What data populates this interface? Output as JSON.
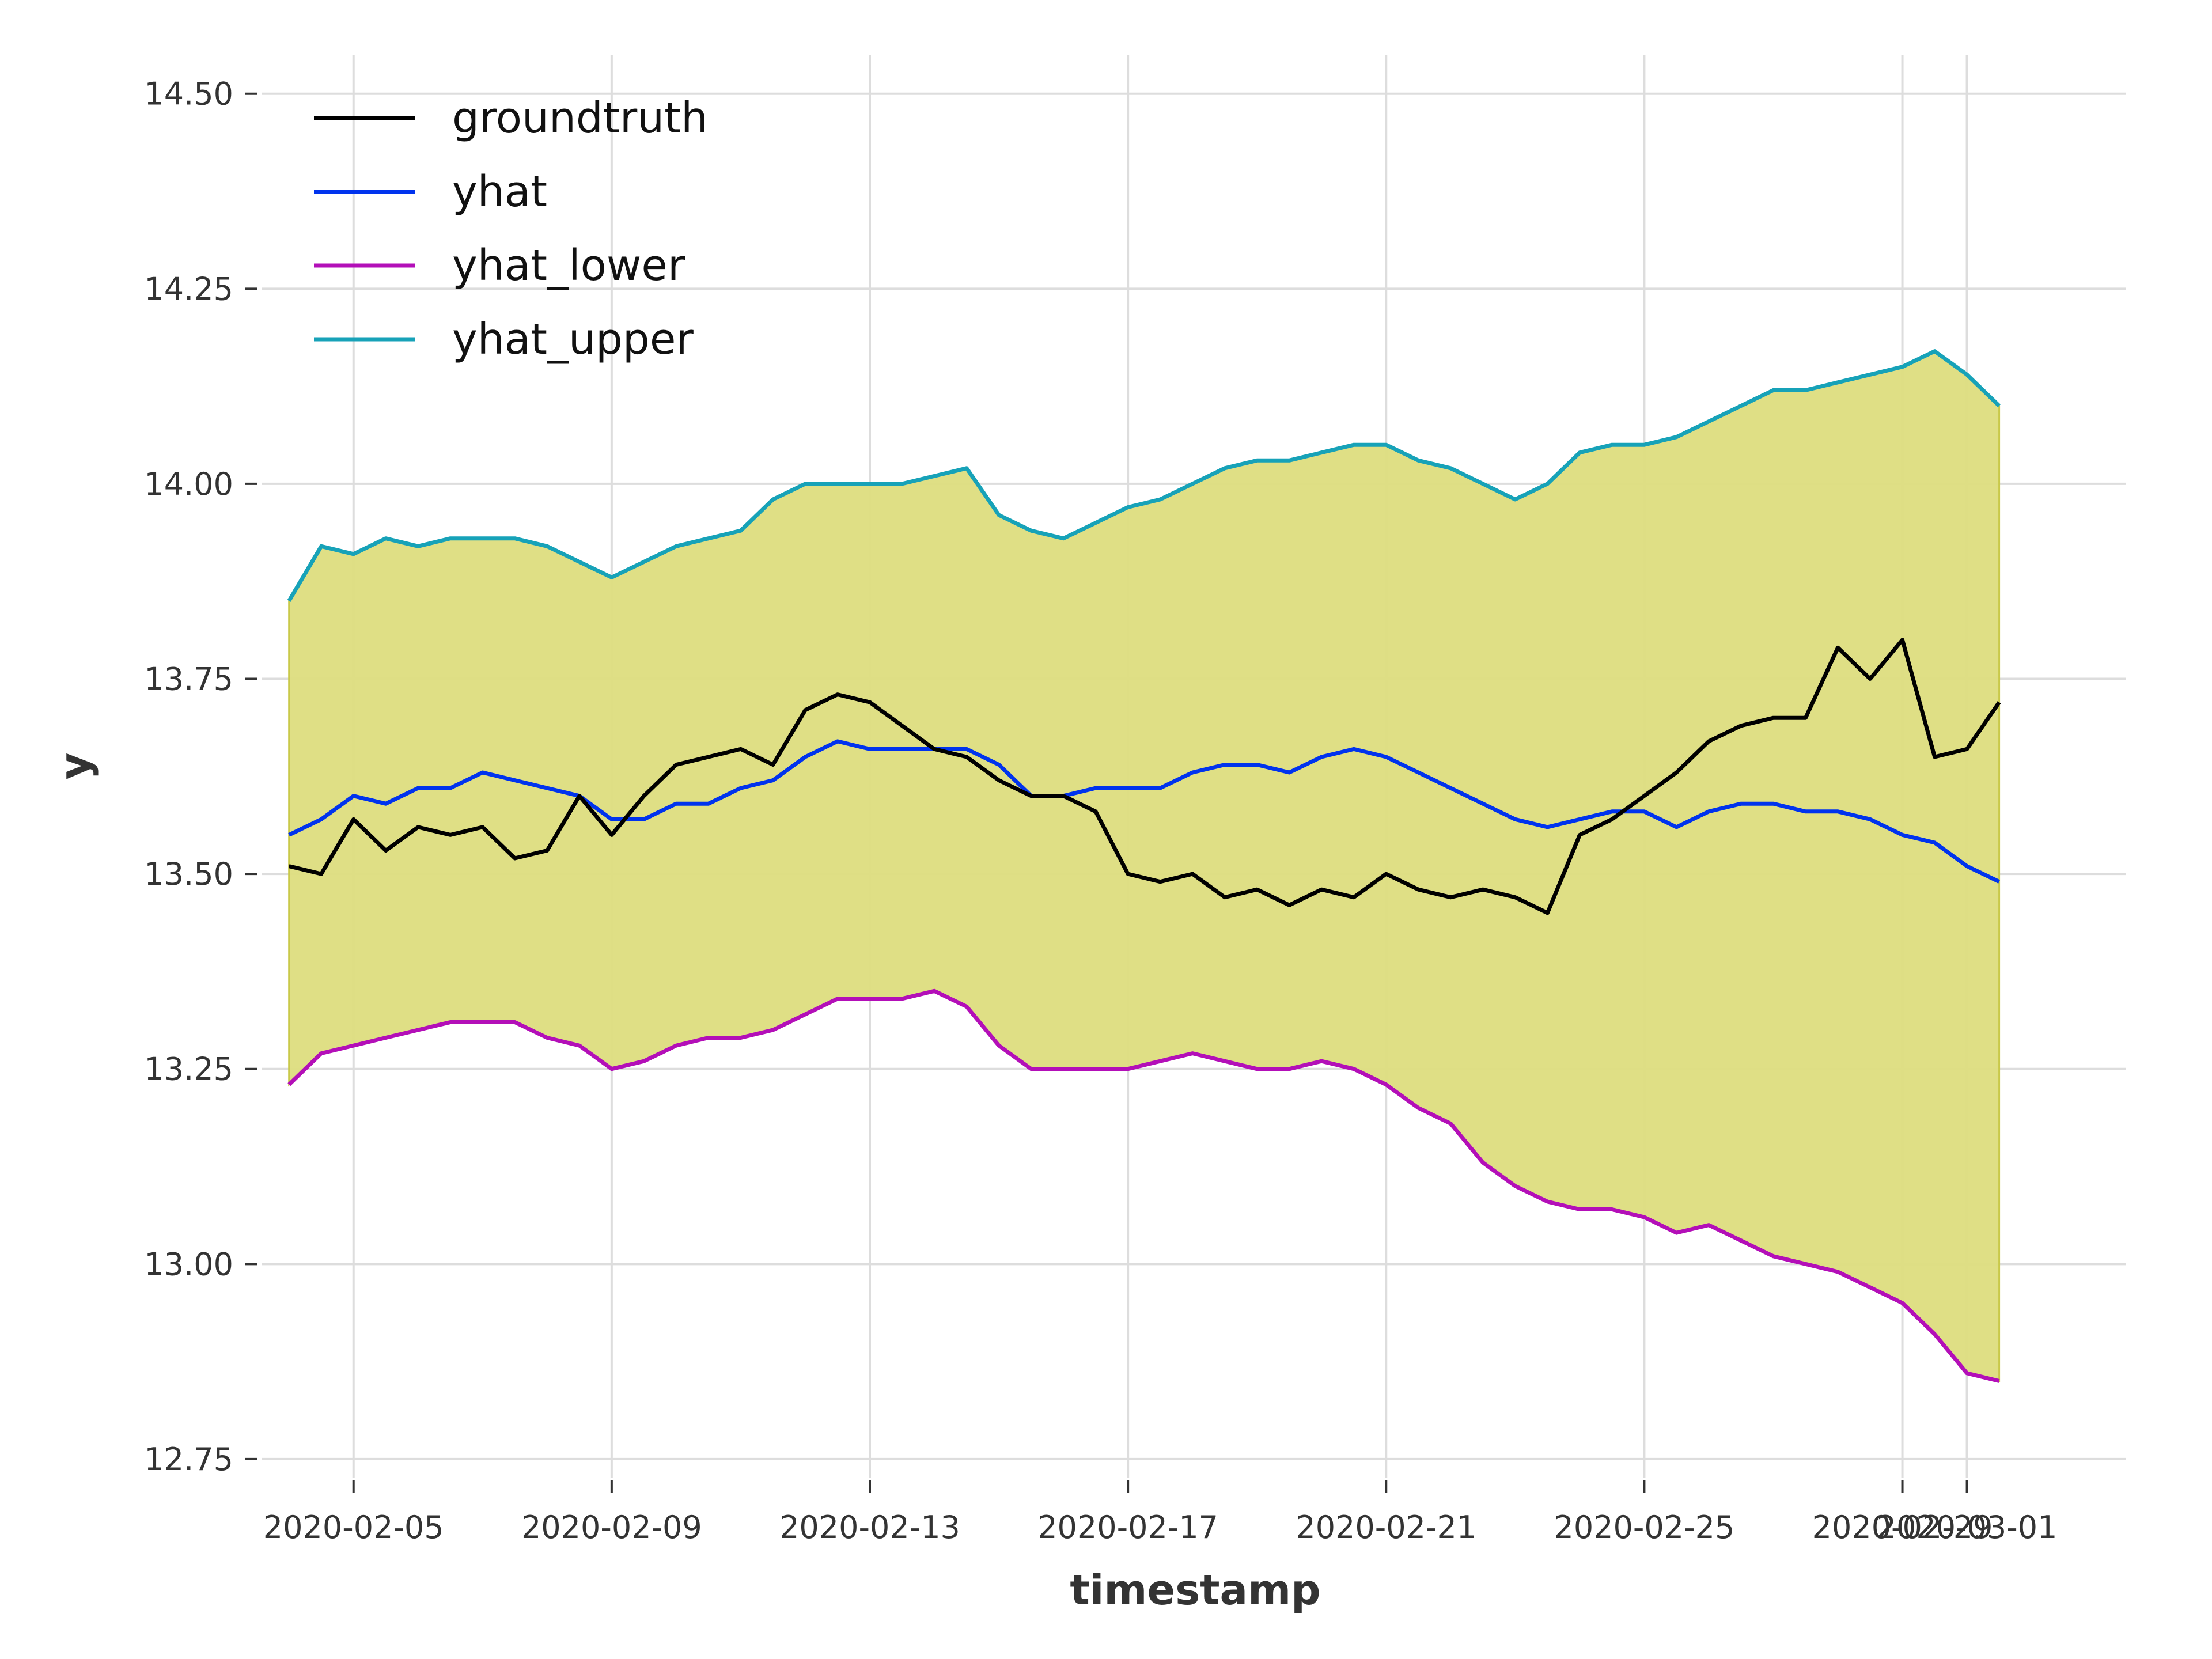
{
  "chart_data": {
    "type": "line",
    "xlabel": "timestamp",
    "ylabel": "y",
    "xlim": [
      "2020-02-03T14:00",
      "2020-03-03T11:00"
    ],
    "ylim": [
      12.73,
      14.55
    ],
    "grid": true,
    "legend_position": "top-left",
    "x_ticks": [
      {
        "date": "2020-02-05",
        "label": "2020-02-05"
      },
      {
        "date": "2020-02-09",
        "label": "2020-02-09"
      },
      {
        "date": "2020-02-13",
        "label": "2020-02-13"
      },
      {
        "date": "2020-02-17",
        "label": "2020-02-17"
      },
      {
        "date": "2020-02-21",
        "label": "2020-02-21"
      },
      {
        "date": "2020-02-25",
        "label": "2020-02-25"
      },
      {
        "date": "2020-02-29",
        "label": "2020-02-29"
      },
      {
        "date": "2020-03-01",
        "label": "2020-03-01"
      }
    ],
    "y_ticks": [
      {
        "value": 12.75,
        "label": "12.75"
      },
      {
        "value": 13.0,
        "label": "13.00"
      },
      {
        "value": 13.25,
        "label": "13.25"
      },
      {
        "value": 13.5,
        "label": "13.50"
      },
      {
        "value": 13.75,
        "label": "13.75"
      },
      {
        "value": 14.0,
        "label": "14.00"
      },
      {
        "value": 14.25,
        "label": "14.25"
      },
      {
        "value": 14.5,
        "label": "14.50"
      }
    ],
    "band": {
      "lower": "yhat_lower",
      "upper": "yhat_upper",
      "color": "#dddd7e"
    },
    "x": [
      "2020-02-04T00:00",
      "2020-02-04T12:00",
      "2020-02-05T00:00",
      "2020-02-05T12:00",
      "2020-02-06T00:00",
      "2020-02-06T12:00",
      "2020-02-07T00:00",
      "2020-02-07T12:00",
      "2020-02-08T00:00",
      "2020-02-08T12:00",
      "2020-02-09T00:00",
      "2020-02-09T12:00",
      "2020-02-10T00:00",
      "2020-02-10T12:00",
      "2020-02-11T00:00",
      "2020-02-11T12:00",
      "2020-02-12T00:00",
      "2020-02-12T12:00",
      "2020-02-13T00:00",
      "2020-02-13T12:00",
      "2020-02-14T00:00",
      "2020-02-14T12:00",
      "2020-02-15T00:00",
      "2020-02-15T12:00",
      "2020-02-16T00:00",
      "2020-02-16T12:00",
      "2020-02-17T00:00",
      "2020-02-17T12:00",
      "2020-02-18T00:00",
      "2020-02-18T12:00",
      "2020-02-19T00:00",
      "2020-02-19T12:00",
      "2020-02-20T00:00",
      "2020-02-20T12:00",
      "2020-02-21T00:00",
      "2020-02-21T12:00",
      "2020-02-22T00:00",
      "2020-02-22T12:00",
      "2020-02-23T00:00",
      "2020-02-23T12:00",
      "2020-02-24T00:00",
      "2020-02-24T12:00",
      "2020-02-25T00:00",
      "2020-02-25T12:00",
      "2020-02-26T00:00",
      "2020-02-26T12:00",
      "2020-02-27T00:00",
      "2020-02-27T12:00",
      "2020-02-28T00:00",
      "2020-02-28T12:00",
      "2020-02-29T00:00",
      "2020-02-29T12:00",
      "2020-03-01T00:00",
      "2020-03-01T12:00"
    ],
    "series": [
      {
        "name": "groundtruth",
        "color": "#000000",
        "values": [
          13.51,
          13.5,
          13.57,
          13.53,
          13.56,
          13.55,
          13.56,
          13.52,
          13.53,
          13.6,
          13.55,
          13.6,
          13.64,
          13.65,
          13.66,
          13.64,
          13.71,
          13.73,
          13.72,
          13.69,
          13.66,
          13.65,
          13.62,
          13.6,
          13.6,
          13.58,
          13.5,
          13.49,
          13.5,
          13.47,
          13.48,
          13.46,
          13.48,
          13.47,
          13.5,
          13.48,
          13.47,
          13.48,
          13.47,
          13.45,
          13.55,
          13.57,
          13.6,
          13.63,
          13.67,
          13.69,
          13.7,
          13.7,
          13.79,
          13.75,
          13.8,
          13.65,
          13.66,
          13.72
        ]
      },
      {
        "name": "yhat",
        "color": "#0033ee",
        "values": [
          13.55,
          13.57,
          13.6,
          13.59,
          13.61,
          13.61,
          13.63,
          13.62,
          13.61,
          13.6,
          13.57,
          13.57,
          13.59,
          13.59,
          13.61,
          13.62,
          13.65,
          13.67,
          13.66,
          13.66,
          13.66,
          13.66,
          13.64,
          13.6,
          13.6,
          13.61,
          13.61,
          13.61,
          13.63,
          13.64,
          13.64,
          13.63,
          13.65,
          13.66,
          13.65,
          13.63,
          13.61,
          13.59,
          13.57,
          13.56,
          13.57,
          13.58,
          13.58,
          13.56,
          13.58,
          13.59,
          13.59,
          13.58,
          13.58,
          13.57,
          13.55,
          13.54,
          13.51,
          13.49
        ]
      },
      {
        "name": "yhat_lower",
        "color": "#b30fb8",
        "values": [
          13.23,
          13.27,
          13.28,
          13.29,
          13.3,
          13.31,
          13.31,
          13.31,
          13.29,
          13.28,
          13.25,
          13.26,
          13.28,
          13.29,
          13.29,
          13.3,
          13.32,
          13.34,
          13.34,
          13.34,
          13.35,
          13.33,
          13.28,
          13.25,
          13.25,
          13.25,
          13.25,
          13.26,
          13.27,
          13.26,
          13.25,
          13.25,
          13.26,
          13.25,
          13.23,
          13.2,
          13.18,
          13.13,
          13.1,
          13.08,
          13.07,
          13.07,
          13.06,
          13.04,
          13.05,
          13.03,
          13.01,
          13.0,
          12.99,
          12.97,
          12.95,
          12.91,
          12.86,
          12.85
        ]
      },
      {
        "name": "yhat_upper",
        "color": "#17a2b8",
        "values": [
          13.85,
          13.92,
          13.91,
          13.93,
          13.92,
          13.93,
          13.93,
          13.93,
          13.92,
          13.9,
          13.88,
          13.9,
          13.92,
          13.93,
          13.94,
          13.98,
          14.0,
          14.0,
          14.0,
          14.0,
          14.01,
          14.02,
          13.96,
          13.94,
          13.93,
          13.95,
          13.97,
          13.98,
          14.0,
          14.02,
          14.03,
          14.03,
          14.04,
          14.05,
          14.05,
          14.03,
          14.02,
          14.0,
          13.98,
          14.0,
          14.04,
          14.05,
          14.05,
          14.06,
          14.08,
          14.1,
          14.12,
          14.12,
          14.13,
          14.14,
          14.15,
          14.17,
          14.14,
          14.1
        ]
      }
    ]
  }
}
